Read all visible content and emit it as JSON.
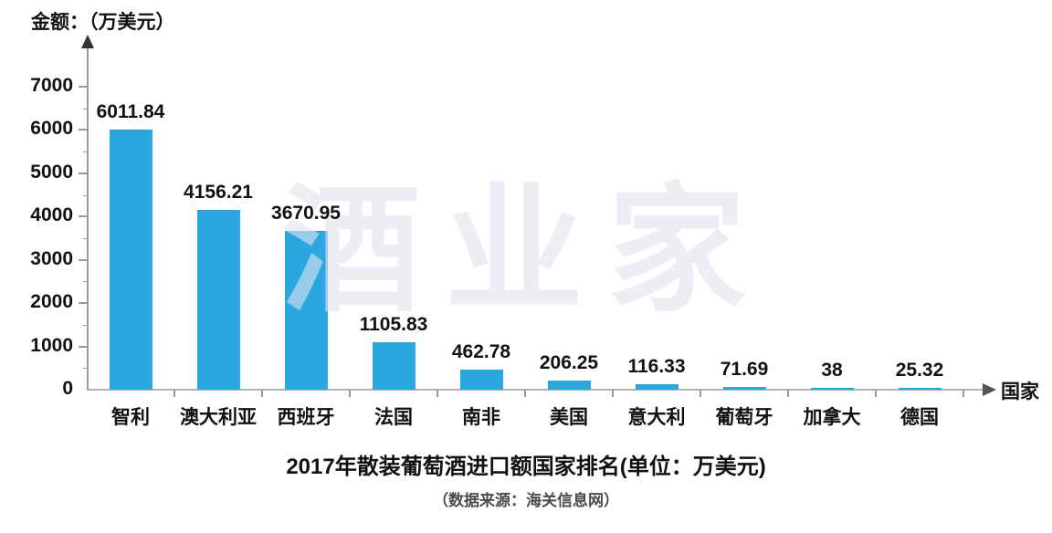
{
  "title": {
    "text": "2017年散装葡萄酒进口额国家排名(单位：万美元)"
  },
  "subtitle": {
    "text": "（数据来源：海关信息网）"
  },
  "watermark": {
    "text": "酒业家"
  },
  "chart_data": {
    "type": "bar",
    "title": "2017年散装葡萄酒进口额国家排名(单位：万美元)",
    "source_note": "（数据来源：海关信息网）",
    "xlabel": "国家",
    "ylabel": "金额：（万美元）",
    "categories": [
      "智利",
      "澳大利亚",
      "西班牙",
      "法国",
      "南非",
      "美国",
      "意大利",
      "葡萄牙",
      "加拿大",
      "德国"
    ],
    "values": [
      6011.84,
      4156.21,
      3670.95,
      1105.83,
      462.78,
      206.25,
      116.33,
      71.69,
      38,
      25.32
    ],
    "value_labels": [
      "6011.84",
      "4156.21",
      "3670.95",
      "1105.83",
      "462.78",
      "206.25",
      "116.33",
      "71.69",
      "38",
      "25.32"
    ],
    "y_ticks": [
      0,
      1000,
      2000,
      3000,
      4000,
      5000,
      6000,
      7000
    ],
    "minor_tick_step": 500,
    "ylim": [
      0,
      7400
    ],
    "grid": false,
    "legend": "none",
    "bar_color": "#2ba7e0",
    "axis_color": "#999999",
    "text_color": "#111111",
    "watermark_color": "rgba(223,226,235,0.6)"
  }
}
